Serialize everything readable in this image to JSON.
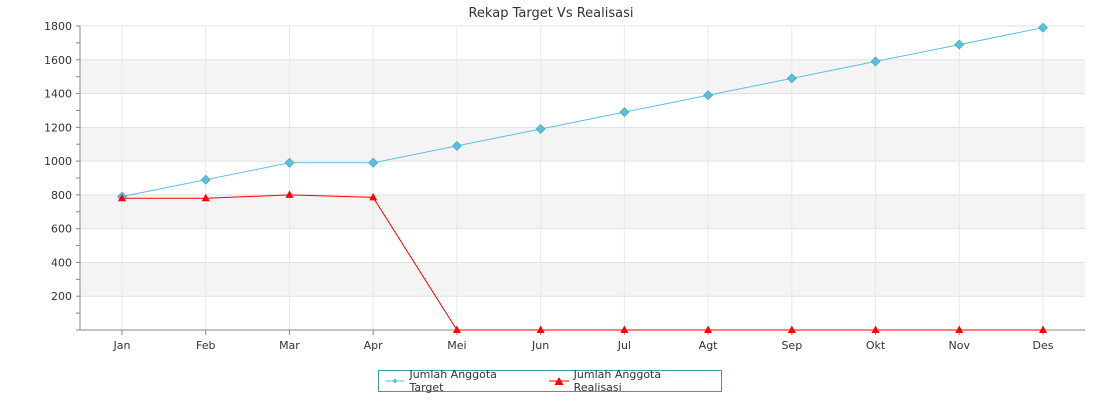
{
  "chart_data": {
    "type": "line",
    "title": "Rekap Target Vs Realisasi",
    "categories": [
      "Jan",
      "Feb",
      "Mar",
      "Apr",
      "Mei",
      "Jun",
      "Jul",
      "Agt",
      "Sep",
      "Okt",
      "Nov",
      "Des"
    ],
    "series": [
      {
        "name": "Jumlah Anggota Target",
        "color": "#5bc0de",
        "marker": "diamond",
        "values": [
          790,
          890,
          990,
          990,
          1090,
          1190,
          1290,
          1390,
          1490,
          1590,
          1690,
          1790
        ]
      },
      {
        "name": "Jumlah Anggota Realisasi",
        "color": "#ff0000",
        "marker": "triangle",
        "values": [
          780,
          780,
          800,
          785,
          0,
          0,
          0,
          0,
          0,
          0,
          0,
          0
        ]
      }
    ],
    "yticks": [
      200,
      400,
      600,
      800,
      1000,
      1200,
      1400,
      1600,
      1800
    ],
    "ylim": [
      0,
      1800
    ],
    "grid": true,
    "legend_position": "bottom-center"
  }
}
